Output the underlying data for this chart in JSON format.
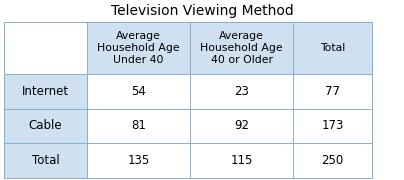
{
  "title": "Television Viewing Method",
  "col_headers": [
    "Average\nHousehold Age\nUnder 40",
    "Average\nHousehold Age\n40 or Older",
    "Total"
  ],
  "row_headers": [
    "Internet",
    "Cable",
    "Total"
  ],
  "table_data": [
    [
      "54",
      "23",
      "77"
    ],
    [
      "81",
      "92",
      "173"
    ],
    [
      "135",
      "115",
      "250"
    ]
  ],
  "header_bg": "#cfe0f0",
  "row_header_bg": "#cfe0f0",
  "cell_bg": "#ffffff",
  "border_color": "#8ab0cc",
  "title_fontsize": 10,
  "header_fontsize": 7.8,
  "cell_fontsize": 8.5,
  "title_color": "#000000",
  "text_color": "#000000",
  "fig_width": 4.04,
  "fig_height": 1.8,
  "dpi": 100
}
